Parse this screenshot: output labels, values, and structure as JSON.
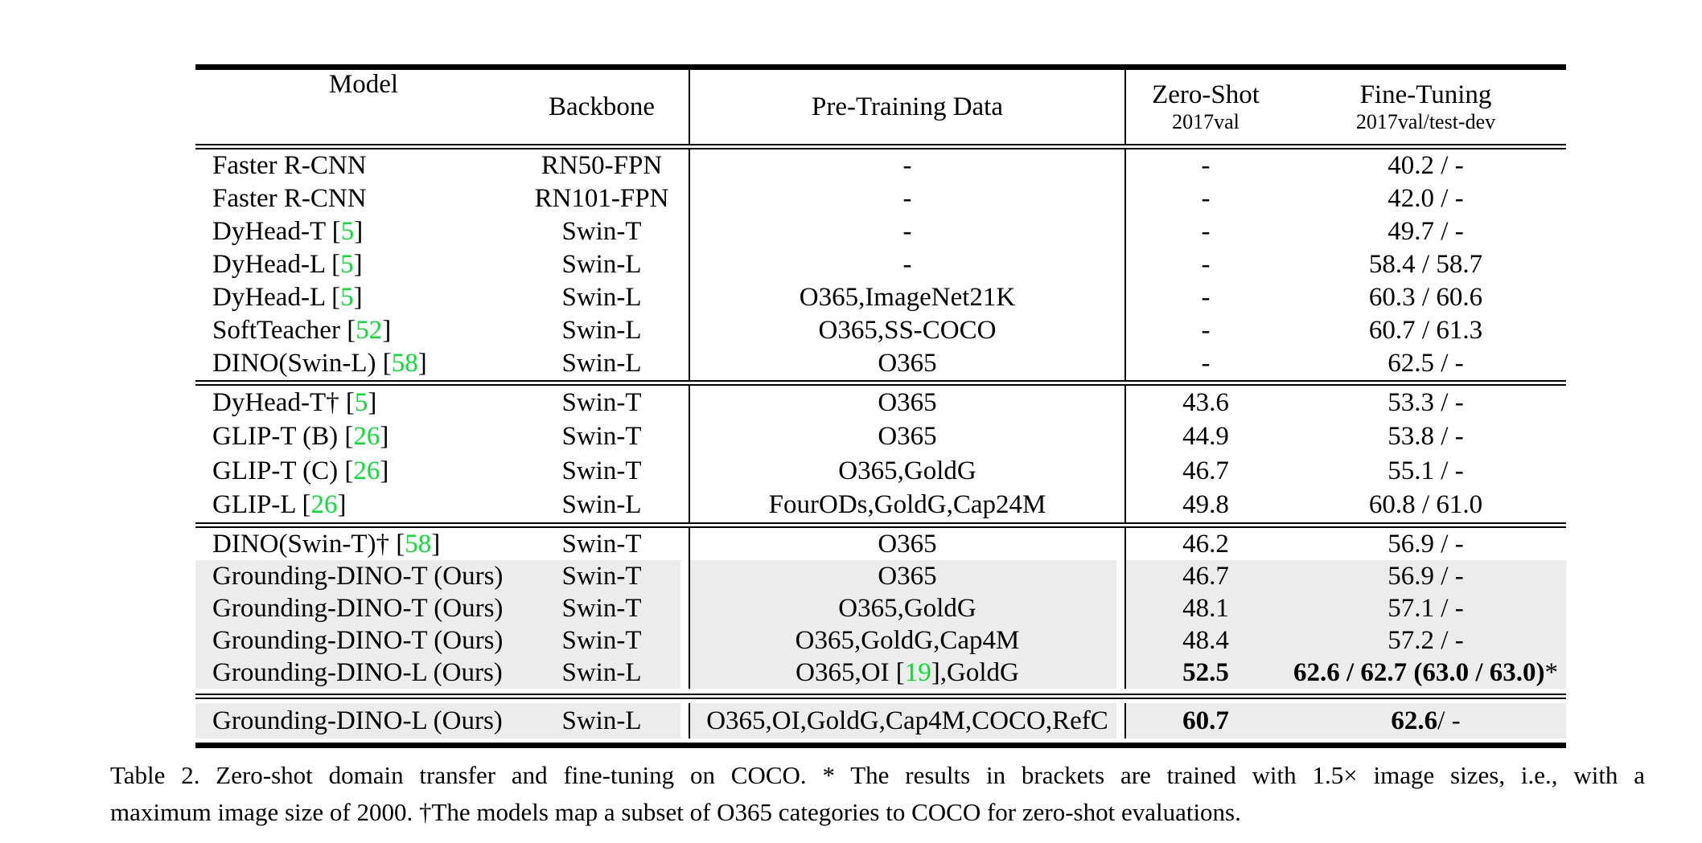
{
  "colors": {
    "citation_green": "#00e42e",
    "highlight_gray": "#ececec",
    "rule_black": "#000000"
  },
  "table": {
    "columns": [
      {
        "label": "Model",
        "sublabel": ""
      },
      {
        "label": "Backbone",
        "sublabel": ""
      },
      {
        "label": "Pre-Training Data",
        "sublabel": ""
      },
      {
        "label": "Zero-Shot",
        "sublabel": "2017val"
      },
      {
        "label": "Fine-Tuning",
        "sublabel": "2017val/test-dev"
      }
    ],
    "blocks": [
      {
        "rows": [
          {
            "highlight": false,
            "cells": [
              [
                {
                  "t": "Faster R-CNN"
                }
              ],
              [
                {
                  "t": "RN50-FPN"
                }
              ],
              [
                {
                  "t": "-"
                }
              ],
              [
                {
                  "t": "-"
                }
              ],
              [
                {
                  "t": "40.2 / -"
                }
              ]
            ]
          },
          {
            "highlight": false,
            "cells": [
              [
                {
                  "t": "Faster R-CNN"
                }
              ],
              [
                {
                  "t": "RN101-FPN"
                }
              ],
              [
                {
                  "t": "-"
                }
              ],
              [
                {
                  "t": "-"
                }
              ],
              [
                {
                  "t": "42.0 / -"
                }
              ]
            ]
          },
          {
            "highlight": false,
            "cells": [
              [
                {
                  "t": "DyHead-T ["
                },
                {
                  "t": "5",
                  "c": "g"
                },
                {
                  "t": "]"
                }
              ],
              [
                {
                  "t": "Swin-T"
                }
              ],
              [
                {
                  "t": "-"
                }
              ],
              [
                {
                  "t": "-"
                }
              ],
              [
                {
                  "t": "49.7 / -"
                }
              ]
            ]
          },
          {
            "highlight": false,
            "cells": [
              [
                {
                  "t": "DyHead-L ["
                },
                {
                  "t": "5",
                  "c": "g"
                },
                {
                  "t": "]"
                }
              ],
              [
                {
                  "t": "Swin-L"
                }
              ],
              [
                {
                  "t": "-"
                }
              ],
              [
                {
                  "t": "-"
                }
              ],
              [
                {
                  "t": "58.4 / 58.7"
                }
              ]
            ]
          },
          {
            "highlight": false,
            "cells": [
              [
                {
                  "t": "DyHead-L ["
                },
                {
                  "t": "5",
                  "c": "g"
                },
                {
                  "t": "]"
                }
              ],
              [
                {
                  "t": "Swin-L"
                }
              ],
              [
                {
                  "t": "O365,ImageNet21K"
                }
              ],
              [
                {
                  "t": "-"
                }
              ],
              [
                {
                  "t": "60.3 / 60.6"
                }
              ]
            ]
          },
          {
            "highlight": false,
            "cells": [
              [
                {
                  "t": "SoftTeacher ["
                },
                {
                  "t": "52",
                  "c": "g"
                },
                {
                  "t": "]"
                }
              ],
              [
                {
                  "t": "Swin-L"
                }
              ],
              [
                {
                  "t": "O365,SS-COCO"
                }
              ],
              [
                {
                  "t": "-"
                }
              ],
              [
                {
                  "t": "60.7 / 61.3"
                }
              ]
            ]
          },
          {
            "highlight": false,
            "cells": [
              [
                {
                  "t": "DINO(Swin-L) ["
                },
                {
                  "t": "58",
                  "c": "g"
                },
                {
                  "t": "]"
                }
              ],
              [
                {
                  "t": "Swin-L"
                }
              ],
              [
                {
                  "t": "O365"
                }
              ],
              [
                {
                  "t": "-"
                }
              ],
              [
                {
                  "t": "62.5 / -"
                }
              ]
            ]
          }
        ]
      },
      {
        "rows": [
          {
            "highlight": false,
            "cells": [
              [
                {
                  "t": "DyHead-T† ["
                },
                {
                  "t": "5",
                  "c": "g"
                },
                {
                  "t": "]"
                }
              ],
              [
                {
                  "t": "Swin-T"
                }
              ],
              [
                {
                  "t": "O365"
                }
              ],
              [
                {
                  "t": "43.6"
                }
              ],
              [
                {
                  "t": "53.3 / -"
                }
              ]
            ]
          },
          {
            "highlight": false,
            "cells": [
              [
                {
                  "t": "GLIP-T (B) ["
                },
                {
                  "t": "26",
                  "c": "g"
                },
                {
                  "t": "]"
                }
              ],
              [
                {
                  "t": "Swin-T"
                }
              ],
              [
                {
                  "t": "O365"
                }
              ],
              [
                {
                  "t": "44.9"
                }
              ],
              [
                {
                  "t": "53.8 / -"
                }
              ]
            ]
          },
          {
            "highlight": false,
            "cells": [
              [
                {
                  "t": "GLIP-T (C) ["
                },
                {
                  "t": "26",
                  "c": "g"
                },
                {
                  "t": "]"
                }
              ],
              [
                {
                  "t": "Swin-T"
                }
              ],
              [
                {
                  "t": "O365,GoldG"
                }
              ],
              [
                {
                  "t": "46.7"
                }
              ],
              [
                {
                  "t": "55.1 / -"
                }
              ]
            ]
          },
          {
            "highlight": false,
            "cells": [
              [
                {
                  "t": "GLIP-L ["
                },
                {
                  "t": "26",
                  "c": "g"
                },
                {
                  "t": "]"
                }
              ],
              [
                {
                  "t": "Swin-L"
                }
              ],
              [
                {
                  "t": "FourODs,GoldG,Cap24M"
                }
              ],
              [
                {
                  "t": "49.8"
                }
              ],
              [
                {
                  "t": "60.8 / 61.0"
                }
              ]
            ]
          }
        ]
      },
      {
        "rows": [
          {
            "highlight": false,
            "cells": [
              [
                {
                  "t": "DINO(Swin-T)† ["
                },
                {
                  "t": "58",
                  "c": "g"
                },
                {
                  "t": "]"
                }
              ],
              [
                {
                  "t": "Swin-T"
                }
              ],
              [
                {
                  "t": "O365"
                }
              ],
              [
                {
                  "t": "46.2"
                }
              ],
              [
                {
                  "t": "56.9 / -"
                }
              ]
            ]
          },
          {
            "highlight": true,
            "cells": [
              [
                {
                  "t": "Grounding-DINO-T (Ours)"
                }
              ],
              [
                {
                  "t": "Swin-T"
                }
              ],
              [
                {
                  "t": "O365"
                }
              ],
              [
                {
                  "t": "46.7"
                }
              ],
              [
                {
                  "t": "56.9 / -"
                }
              ]
            ]
          },
          {
            "highlight": true,
            "cells": [
              [
                {
                  "t": "Grounding-DINO-T (Ours)"
                }
              ],
              [
                {
                  "t": "Swin-T"
                }
              ],
              [
                {
                  "t": "O365,GoldG"
                }
              ],
              [
                {
                  "t": "48.1"
                }
              ],
              [
                {
                  "t": "57.1 / -"
                }
              ]
            ]
          },
          {
            "highlight": true,
            "cells": [
              [
                {
                  "t": "Grounding-DINO-T (Ours)"
                }
              ],
              [
                {
                  "t": "Swin-T"
                }
              ],
              [
                {
                  "t": "O365,GoldG,Cap4M"
                }
              ],
              [
                {
                  "t": "48.4"
                }
              ],
              [
                {
                  "t": "57.2 / -"
                }
              ]
            ]
          },
          {
            "highlight": true,
            "cells": [
              [
                {
                  "t": "Grounding-DINO-L (Ours)"
                }
              ],
              [
                {
                  "t": "Swin-L"
                }
              ],
              [
                {
                  "t": "O365,OI ["
                },
                {
                  "t": "19",
                  "c": "g"
                },
                {
                  "t": "],GoldG"
                }
              ],
              [
                {
                  "t": "52.5",
                  "c": "bold"
                }
              ],
              [
                {
                  "t": "62.6 / 62.7 (63.0 / 63.0)",
                  "c": "bold"
                },
                {
                  "t": "*"
                }
              ]
            ]
          }
        ]
      },
      {
        "pad": true,
        "rows": [
          {
            "highlight": true,
            "cells": [
              [
                {
                  "t": "Grounding-DINO-L (Ours)"
                }
              ],
              [
                {
                  "t": "Swin-L"
                }
              ],
              [
                {
                  "t": "O365,OI,GoldG,Cap4M,COCO,RefC"
                }
              ],
              [
                {
                  "t": "60.7",
                  "c": "bold"
                }
              ],
              [
                {
                  "t": "62.6",
                  "c": "bold"
                },
                {
                  "t": " / -"
                }
              ]
            ]
          }
        ]
      }
    ]
  },
  "caption": {
    "lines": [
      "Table 2. Zero-shot domain transfer and fine-tuning on COCO. * The results in brackets are trained with 1.5× image sizes, i.e., with a",
      "maximum image size of 2000. †The models map a subset of O365 categories to COCO for zero-shot evaluations."
    ]
  }
}
